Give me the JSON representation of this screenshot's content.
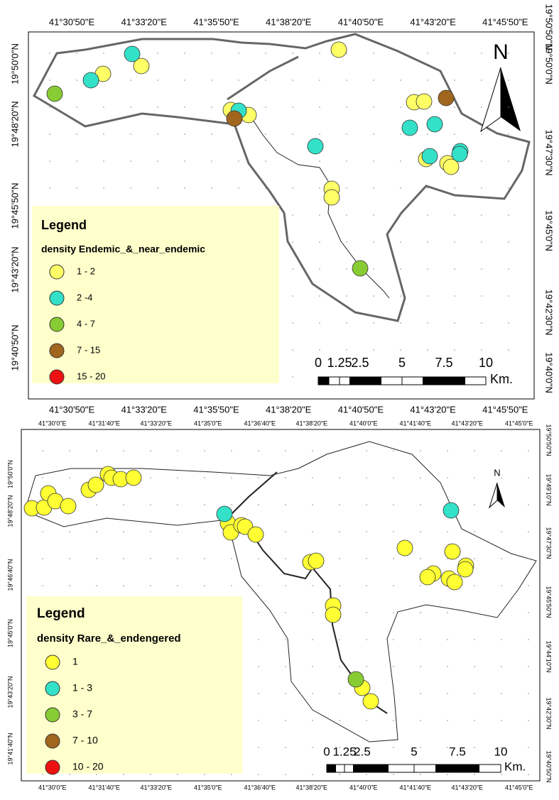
{
  "panels": [
    {
      "top_labels": [
        "41°30'50\"E",
        "41°33'20\"E",
        "41°35'50\"E",
        "41°38'20\"E",
        "41°40'50\"E",
        "41°43'20\"E",
        "41°45'50\"E"
      ],
      "bottom_labels": [
        "41°30'50\"E",
        "41°33'20\"E",
        "41°35'50\"E",
        "41°38'20\"E",
        "41°40'50\"E",
        "41°43'20\"E",
        "41°45'50\"E"
      ],
      "left_labels": [
        "19°50'0\"N",
        "19°48'20\"N",
        "19°45'50\"N",
        "19°43'20\"N",
        "19°40'50\"N"
      ],
      "right_labels": [
        "19°50'50\"N",
        "19°50'0\"N",
        "19°47'30\"N",
        "19°45'0\"N",
        "19°42'30\"N",
        "19°40'0\"N"
      ],
      "north": "N",
      "legend": {
        "title": "Legend",
        "subtitle": "density Endemic_&_near_endemic",
        "items": [
          {
            "label": "1 - 2",
            "color": "#ffff66"
          },
          {
            "label": "2 -4",
            "color": "#33e0c8"
          },
          {
            "label": "4 - 7",
            "color": "#88cc33"
          },
          {
            "label": "7 - 15",
            "color": "#a0661e"
          },
          {
            "label": "15 - 20",
            "color": "#ee1111"
          }
        ]
      },
      "scale": {
        "ticks": [
          "0",
          "1.25",
          "2.5",
          "5",
          "7.5",
          "10"
        ],
        "unit": "Km."
      }
    },
    {
      "top_labels": [
        "41°30'0\"E",
        "41°31'40\"E",
        "41°33'20\"E",
        "41°35'0\"E",
        "41°36'40\"E",
        "41°38'20\"E",
        "41°40'0\"E",
        "41°41'40\"E",
        "41°43'20\"E",
        "41°45'0\"E"
      ],
      "bottom_labels": [
        "41°30'0\"E",
        "41°31'40\"E",
        "41°33'20\"E",
        "41°35'0\"E",
        "41°36'40\"E",
        "41°38'20\"E",
        "41°40'0\"E",
        "41°41'40\"E",
        "41°43'20\"E",
        "41°45'0\"E"
      ],
      "left_labels": [
        "19°50'0\"N",
        "19°48'20\"N",
        "19°46'40\"N",
        "19°45'0\"N",
        "19°43'20\"N",
        "19°41'40\"N"
      ],
      "right_labels": [
        "19°50'50\"N",
        "19°49'10\"N",
        "19°47'30\"N",
        "19°45'50\"N",
        "19°44'10\"N",
        "19°42'30\"N",
        "19°40'50\"N"
      ],
      "north": "N",
      "legend": {
        "title": "Legend",
        "subtitle": "density Rare_&_endengered",
        "items": [
          {
            "label": "1",
            "color": "#ffff33"
          },
          {
            "label": "1 - 3",
            "color": "#33e0c8"
          },
          {
            "label": "3 - 7",
            "color": "#88cc33"
          },
          {
            "label": "7 - 10",
            "color": "#a0661e"
          },
          {
            "label": "10 - 20",
            "color": "#ee1111"
          }
        ]
      },
      "scale": {
        "ticks": [
          "0",
          "1.25",
          "2.5",
          "5",
          "7.5",
          "10"
        ],
        "unit": "Km."
      }
    }
  ]
}
